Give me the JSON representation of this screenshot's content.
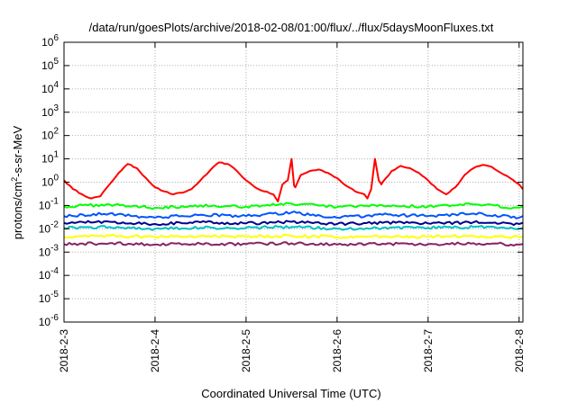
{
  "chart_data": {
    "type": "line",
    "title": "/data/run/goesPlots/archive/2018-02-08/01:00/flux/../flux/5daysMoonFluxes.txt",
    "xlabel": "Coordinated Universal Time (UTC)",
    "ylabel": "protons/cm2-s-sr-MeV",
    "y_scale": "log",
    "ylim": [
      1e-06,
      1000000.0
    ],
    "xlim": [
      "2018-02-03",
      "2018-02-08T01:00"
    ],
    "x_ticks": [
      "2018-2-3",
      "2018-2-4",
      "2018-2-5",
      "2018-2-6",
      "2018-2-7",
      "2018-2-8"
    ],
    "y_ticks": [
      {
        "base": "10",
        "exp": "-6"
      },
      {
        "base": "10",
        "exp": "-5"
      },
      {
        "base": "10",
        "exp": "-4"
      },
      {
        "base": "10",
        "exp": "-3"
      },
      {
        "base": "10",
        "exp": "-2"
      },
      {
        "base": "10",
        "exp": "-1"
      },
      {
        "base": "10",
        "exp": "0"
      },
      {
        "base": "10",
        "exp": "1"
      },
      {
        "base": "10",
        "exp": "2"
      },
      {
        "base": "10",
        "exp": "3"
      },
      {
        "base": "10",
        "exp": "4"
      },
      {
        "base": "10",
        "exp": "5"
      },
      {
        "base": "10",
        "exp": "6"
      }
    ],
    "grid": true,
    "legend": "none",
    "series": [
      {
        "color": "#ff0000",
        "x": [
          "2018-02-03T00:00",
          "2018-02-03T02:24",
          "2018-02-03T04:48",
          "2018-02-03T07:12",
          "2018-02-03T09:36",
          "2018-02-03T12:00",
          "2018-02-03T14:24",
          "2018-02-03T16:48",
          "2018-02-03T19:12",
          "2018-02-03T21:36",
          "2018-02-04T00:00",
          "2018-02-04T02:24",
          "2018-02-04T04:48",
          "2018-02-04T07:12",
          "2018-02-04T09:36",
          "2018-02-04T12:00",
          "2018-02-04T14:24",
          "2018-02-04T16:48",
          "2018-02-04T19:12",
          "2018-02-04T21:36",
          "2018-02-05T00:00",
          "2018-02-05T02:24",
          "2018-02-05T04:48",
          "2018-02-05T07:12",
          "2018-02-05T08:24",
          "2018-02-05T09:36",
          "2018-02-05T11:00",
          "2018-02-05T12:00",
          "2018-02-05T12:40",
          "2018-02-05T13:00",
          "2018-02-05T13:20",
          "2018-02-05T14:24",
          "2018-02-05T16:48",
          "2018-02-05T19:12",
          "2018-02-05T21:36",
          "2018-02-06T00:00",
          "2018-02-06T02:24",
          "2018-02-06T04:48",
          "2018-02-06T07:12",
          "2018-02-06T08:00",
          "2018-02-06T09:00",
          "2018-02-06T10:00",
          "2018-02-06T11:00",
          "2018-02-06T11:40",
          "2018-02-06T12:00",
          "2018-02-06T14:24",
          "2018-02-06T16:48",
          "2018-02-06T19:12",
          "2018-02-06T21:36",
          "2018-02-07T00:00",
          "2018-02-07T02:24",
          "2018-02-07T04:48",
          "2018-02-07T07:12",
          "2018-02-07T09:36",
          "2018-02-07T12:00",
          "2018-02-07T14:24",
          "2018-02-07T16:48",
          "2018-02-07T19:12",
          "2018-02-07T21:36",
          "2018-02-08T00:00",
          "2018-02-08T01:00"
        ],
        "values": [
          1.2,
          0.5,
          0.3,
          0.2,
          0.25,
          0.8,
          2.5,
          6,
          4,
          1.5,
          0.6,
          0.4,
          0.3,
          0.35,
          0.5,
          1.2,
          3,
          7,
          6,
          3,
          1.2,
          0.6,
          0.4,
          0.3,
          0.15,
          0.8,
          1.2,
          10,
          0.7,
          0.6,
          0.8,
          2,
          3,
          3.5,
          2.5,
          1.5,
          0.7,
          0.4,
          0.3,
          0.2,
          0.5,
          10,
          1.2,
          0.8,
          1,
          3,
          5,
          4,
          2.5,
          1.2,
          0.5,
          0.3,
          0.6,
          2,
          4,
          5.5,
          4.5,
          2.5,
          1.5,
          0.8,
          0.5
        ]
      },
      {
        "color": "#00ff00",
        "x": [
          "2018-02-03",
          "2018-02-03T12:00",
          "2018-02-04",
          "2018-02-04T12:00",
          "2018-02-05",
          "2018-02-05T12:00",
          "2018-02-06",
          "2018-02-06T12:00",
          "2018-02-07",
          "2018-02-07T12:00",
          "2018-02-08",
          "2018-02-08T01:00"
        ],
        "values": [
          0.09,
          0.11,
          0.08,
          0.1,
          0.09,
          0.12,
          0.085,
          0.1,
          0.09,
          0.11,
          0.08,
          0.09
        ]
      },
      {
        "color": "#0055ff",
        "x": [
          "2018-02-03",
          "2018-02-03T12:00",
          "2018-02-04",
          "2018-02-04T12:00",
          "2018-02-05",
          "2018-02-05T12:00",
          "2018-02-06",
          "2018-02-06T12:00",
          "2018-02-07",
          "2018-02-07T12:00",
          "2018-02-08",
          "2018-02-08T01:00"
        ],
        "values": [
          0.035,
          0.045,
          0.03,
          0.04,
          0.035,
          0.05,
          0.03,
          0.04,
          0.035,
          0.045,
          0.03,
          0.035
        ]
      },
      {
        "color": "#000090",
        "x": [
          "2018-02-03",
          "2018-02-03T12:00",
          "2018-02-04",
          "2018-02-04T12:00",
          "2018-02-05",
          "2018-02-05T12:00",
          "2018-02-06",
          "2018-02-06T12:00",
          "2018-02-07",
          "2018-02-07T12:00",
          "2018-02-08",
          "2018-02-08T01:00"
        ],
        "values": [
          0.018,
          0.02,
          0.016,
          0.019,
          0.017,
          0.02,
          0.016,
          0.018,
          0.017,
          0.019,
          0.016,
          0.018
        ]
      },
      {
        "color": "#00c0c0",
        "x": [
          "2018-02-03",
          "2018-02-03T12:00",
          "2018-02-04",
          "2018-02-04T12:00",
          "2018-02-05",
          "2018-02-05T12:00",
          "2018-02-06",
          "2018-02-06T12:00",
          "2018-02-07",
          "2018-02-07T12:00",
          "2018-02-08",
          "2018-02-08T01:00"
        ],
        "values": [
          0.011,
          0.012,
          0.01,
          0.011,
          0.011,
          0.012,
          0.01,
          0.011,
          0.011,
          0.012,
          0.01,
          0.011
        ]
      },
      {
        "color": "#ffff00",
        "x": [
          "2018-02-03",
          "2018-02-03T12:00",
          "2018-02-04",
          "2018-02-04T12:00",
          "2018-02-05",
          "2018-02-05T12:00",
          "2018-02-06",
          "2018-02-06T12:00",
          "2018-02-07",
          "2018-02-07T12:00",
          "2018-02-08",
          "2018-02-08T01:00"
        ],
        "values": [
          0.0045,
          0.005,
          0.0045,
          0.0048,
          0.0045,
          0.005,
          0.0044,
          0.0047,
          0.0045,
          0.0049,
          0.0044,
          0.0046
        ]
      },
      {
        "color": "#882266",
        "x": [
          "2018-02-03",
          "2018-02-03T12:00",
          "2018-02-04",
          "2018-02-04T12:00",
          "2018-02-05",
          "2018-02-05T12:00",
          "2018-02-06",
          "2018-02-06T12:00",
          "2018-02-07",
          "2018-02-07T12:00",
          "2018-02-08",
          "2018-02-08T01:00"
        ],
        "values": [
          0.0022,
          0.0024,
          0.0021,
          0.0023,
          0.0022,
          0.0024,
          0.0021,
          0.0023,
          0.0022,
          0.0024,
          0.0021,
          0.0022
        ]
      }
    ]
  }
}
